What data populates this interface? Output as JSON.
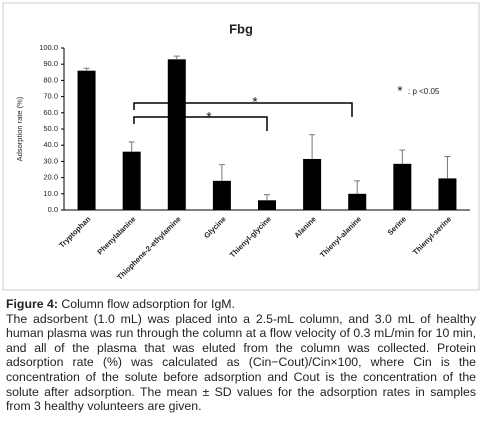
{
  "chart_data": {
    "type": "bar",
    "title": "Fbg",
    "y_label": "Adsorption rate (%)",
    "categories": [
      "Tryptophan",
      "Phenylalanine",
      "Thiophene-2-ethylamine",
      "Glycine",
      "Thienyl-glycine",
      "Alanine",
      "Thienyl-alanine",
      "Serine",
      "Thienyl-serine"
    ],
    "values": [
      86,
      36,
      93,
      18,
      6,
      31.5,
      10,
      28.5,
      19.5
    ],
    "errors": [
      1.5,
      6,
      2,
      10,
      3.5,
      15,
      8,
      8.5,
      13.5
    ],
    "color": "#000000",
    "ylim": [
      0,
      100
    ],
    "yticks": [
      {
        "value": 0,
        "label": "0.0"
      },
      {
        "value": 10,
        "label": "10.0"
      },
      {
        "value": 20,
        "label": "20.0"
      },
      {
        "value": 30,
        "label": "30.0"
      },
      {
        "value": 40,
        "label": "40.0"
      },
      {
        "value": 50,
        "label": "50.0"
      },
      {
        "value": 60,
        "label": "60.0"
      },
      {
        "value": 70,
        "label": "70.0"
      },
      {
        "value": 80,
        "label": "80.0"
      },
      {
        "value": 90,
        "label": "90.0"
      },
      {
        "value": 100,
        "label": "100.0"
      }
    ],
    "annotations": [
      "*",
      "*",
      "*",
      ": p <0.05"
    ]
  },
  "caption": {
    "label": "Figure 4:",
    "title": "Column flow adsorption for IgM.",
    "text": "The adsorbent (1.0 mL) was placed into a 2.5-mL column, and 3.0 mL of healthy human plasma was run through the column at a flow velocity of 0.3 mL/min for 10 min, and all of the plasma that was eluted from the column was collected. Protein adsorption rate (%) was calculated as (Cin−Cout)/Cin×100, where Cin is the concentration of the solute before adsorption and Cout is the concentration of the solute after adsorption. The mean ± SD values for the adsorption rates in samples from 3 healthy volunteers are given."
  }
}
